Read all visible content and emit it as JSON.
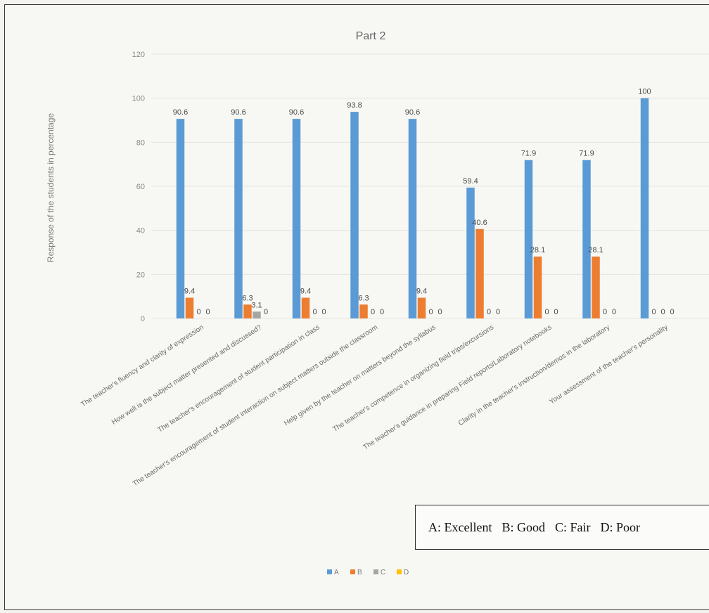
{
  "chart_data": {
    "type": "bar",
    "title": "Part 2",
    "ylabel": "Response of the students in percentage",
    "xlabel": "",
    "ylim": [
      0,
      120
    ],
    "yticks": [
      0,
      20,
      40,
      60,
      80,
      100,
      120
    ],
    "grid": true,
    "legend_position": "bottom",
    "categories": [
      "The teacher's fluency and clarity of expression",
      "How well is the subject matter presented and discussed?",
      "The teacher's encouragement of student participation in class",
      "The teacher's encouragement of student interaction on subject matters outside the classroom",
      "Help given by the teacher on matters beyond the syllabus",
      "The teacher's competence in organizing field trips/excursions",
      "The teacher's guidance in preparing Field reports/Laboratory notebooks",
      "Clarity in the teacher's instruction/demos in the laboratory",
      "Your assessment of the teacher's personality"
    ],
    "series": [
      {
        "name": "A",
        "color": "#5b9bd5",
        "values": [
          90.6,
          90.6,
          90.6,
          93.8,
          90.6,
          59.4,
          71.9,
          71.9,
          100
        ]
      },
      {
        "name": "B",
        "color": "#ed7d31",
        "values": [
          9.4,
          6.3,
          9.4,
          6.3,
          9.4,
          40.6,
          28.1,
          28.1,
          0
        ]
      },
      {
        "name": "C",
        "color": "#a5a5a5",
        "values": [
          0,
          3.1,
          0,
          0,
          0,
          0,
          0,
          0,
          0
        ]
      },
      {
        "name": "D",
        "color": "#ffc000",
        "values": [
          0,
          0,
          0,
          0,
          0,
          0,
          0,
          0,
          0
        ]
      }
    ]
  },
  "key_box": {
    "items": [
      "A: Excellent",
      "B: Good",
      "C: Fair",
      "D: Poor"
    ]
  }
}
